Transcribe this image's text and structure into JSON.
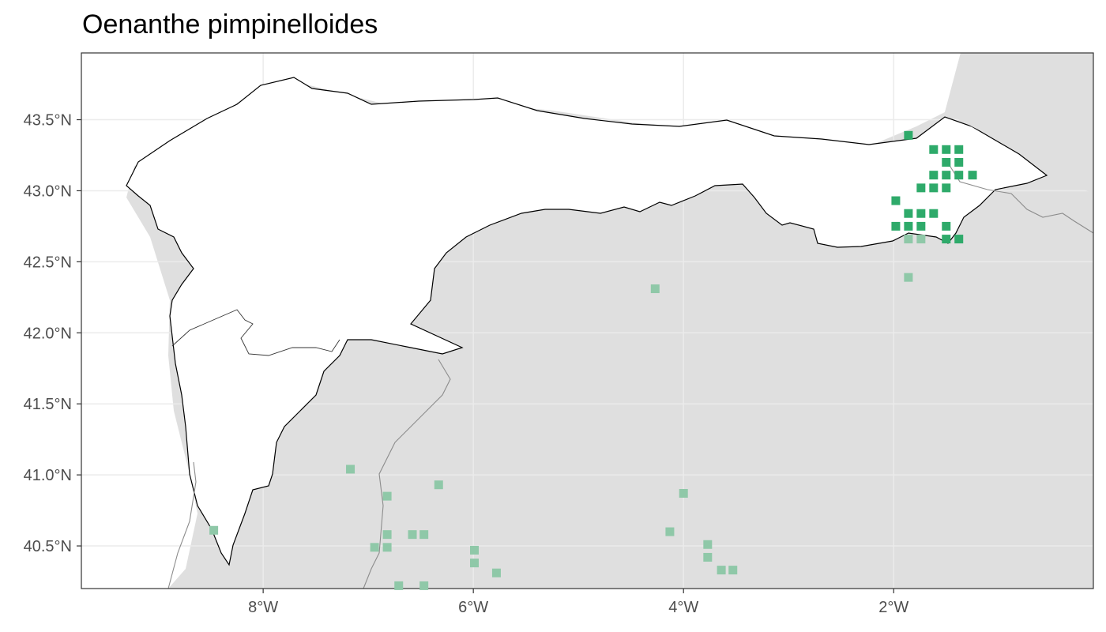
{
  "title": "Oenanthe pimpinelloides",
  "colors": {
    "panel_background": "#dfdfdf",
    "region_fill": "#ffffff",
    "region_border": "#000000",
    "grid": "#ebebeb",
    "border_line": "#8c8c8c",
    "record_recent": "#2eaa6a",
    "record_old": "#8fc8a8",
    "tick_label": "#4d4d4d"
  },
  "axes": {
    "x_ticks": [
      {
        "value": -8,
        "label": "8°W"
      },
      {
        "value": -6,
        "label": "6°W"
      },
      {
        "value": -4,
        "label": "4°W"
      },
      {
        "value": -2,
        "label": "2°W"
      }
    ],
    "y_ticks": [
      {
        "value": 43.5,
        "label": "43.5°N"
      },
      {
        "value": 43.0,
        "label": "43.0°N"
      },
      {
        "value": 42.5,
        "label": "42.5°N"
      },
      {
        "value": 42.0,
        "label": "42.0°N"
      },
      {
        "value": 41.5,
        "label": "41.5°N"
      },
      {
        "value": 41.0,
        "label": "41.0°N"
      },
      {
        "value": 40.5,
        "label": "40.5°N"
      }
    ],
    "xlim": [
      -9.73,
      -0.1
    ],
    "ylim": [
      40.2,
      43.97
    ],
    "grid": true
  },
  "records_recent": [
    [
      -1.86,
      43.39
    ],
    [
      -1.62,
      43.29
    ],
    [
      -1.5,
      43.29
    ],
    [
      -1.38,
      43.29
    ],
    [
      -1.5,
      43.2
    ],
    [
      -1.38,
      43.2
    ],
    [
      -1.62,
      43.11
    ],
    [
      -1.5,
      43.11
    ],
    [
      -1.38,
      43.11
    ],
    [
      -1.25,
      43.11
    ],
    [
      -1.74,
      43.02
    ],
    [
      -1.62,
      43.02
    ],
    [
      -1.5,
      43.02
    ],
    [
      -1.98,
      42.93
    ],
    [
      -1.86,
      42.84
    ],
    [
      -1.74,
      42.84
    ],
    [
      -1.62,
      42.84
    ],
    [
      -1.98,
      42.75
    ],
    [
      -1.86,
      42.75
    ],
    [
      -1.74,
      42.75
    ],
    [
      -1.5,
      42.75
    ],
    [
      -1.5,
      42.66
    ],
    [
      -1.38,
      42.66
    ]
  ],
  "records_old": [
    [
      -1.86,
      42.66
    ],
    [
      -1.74,
      42.66
    ],
    [
      -1.86,
      42.39
    ],
    [
      -4.27,
      42.31
    ],
    [
      -7.17,
      41.04
    ],
    [
      -6.33,
      40.93
    ],
    [
      -6.82,
      40.85
    ],
    [
      -4.0,
      40.87
    ],
    [
      -8.47,
      40.61
    ],
    [
      -4.13,
      40.6
    ],
    [
      -6.82,
      40.58
    ],
    [
      -6.58,
      40.58
    ],
    [
      -6.47,
      40.58
    ],
    [
      -6.94,
      40.49
    ],
    [
      -6.82,
      40.49
    ],
    [
      -3.77,
      40.51
    ],
    [
      -5.99,
      40.47
    ],
    [
      -3.77,
      40.42
    ],
    [
      -5.99,
      40.38
    ],
    [
      -3.64,
      40.33
    ],
    [
      -3.53,
      40.33
    ],
    [
      -5.78,
      40.31
    ],
    [
      -6.71,
      40.22
    ],
    [
      -6.47,
      40.22
    ]
  ]
}
